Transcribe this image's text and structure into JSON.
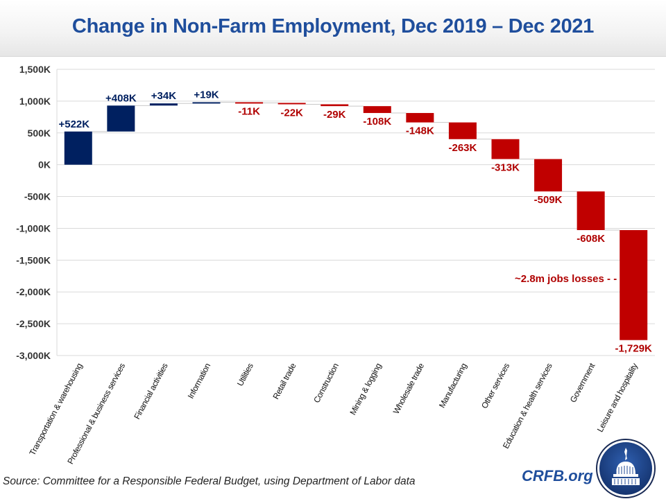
{
  "header": {
    "title": "Change in Non-Farm Employment, Dec 2019 – Dec 2021"
  },
  "footer": {
    "source": "Source: Committee for a Responsible Federal Budget, using Department of Labor data",
    "brand": "CRFB.org",
    "logo_icon": "capitol-dome-icon"
  },
  "colors": {
    "positive": "#002060",
    "negative": "#c00000",
    "title": "#1f4e9c",
    "grid": "#d9d9d9"
  },
  "chart_data": {
    "type": "bar",
    "subtype": "waterfall",
    "title": "Change in Non-Farm Employment, Dec 2019 – Dec 2021",
    "xlabel": "",
    "ylabel": "",
    "units": "thousands of jobs",
    "ylim": [
      -3000,
      1500
    ],
    "yticks": [
      1500,
      1000,
      500,
      0,
      -500,
      -1000,
      -1500,
      -2000,
      -2500,
      -3000
    ],
    "ytick_labels": [
      "1,500K",
      "1,000K",
      "500K",
      "0K",
      "-500K",
      "-1,000K",
      "-1,500K",
      "-2,000K",
      "-2,500K",
      "-3,000K"
    ],
    "grid": true,
    "legend": "none",
    "categories": [
      "Transportation & warehousing",
      "Professional & business services",
      "Financial activities",
      "Information",
      "Utilities",
      "Retail trade",
      "Construction",
      "Mining & logging",
      "Wholesale trade",
      "Manufacturing",
      "Other services",
      "Education & health services",
      "Government",
      "Leisure and hospitality"
    ],
    "values": [
      522,
      408,
      34,
      19,
      -11,
      -22,
      -29,
      -108,
      -148,
      -263,
      -313,
      -509,
      -608,
      -1729
    ],
    "data_labels": [
      "+522K",
      "+408K",
      "+34K",
      "+19K",
      "-11K",
      "-22K",
      "-29K",
      "-108K",
      "-148K",
      "-263K",
      "-313K",
      "-509K",
      "-608K",
      "-1,729K"
    ],
    "annotation": {
      "text": "~2.8m jobs losses - -",
      "category": "Leisure and hospitality"
    }
  }
}
